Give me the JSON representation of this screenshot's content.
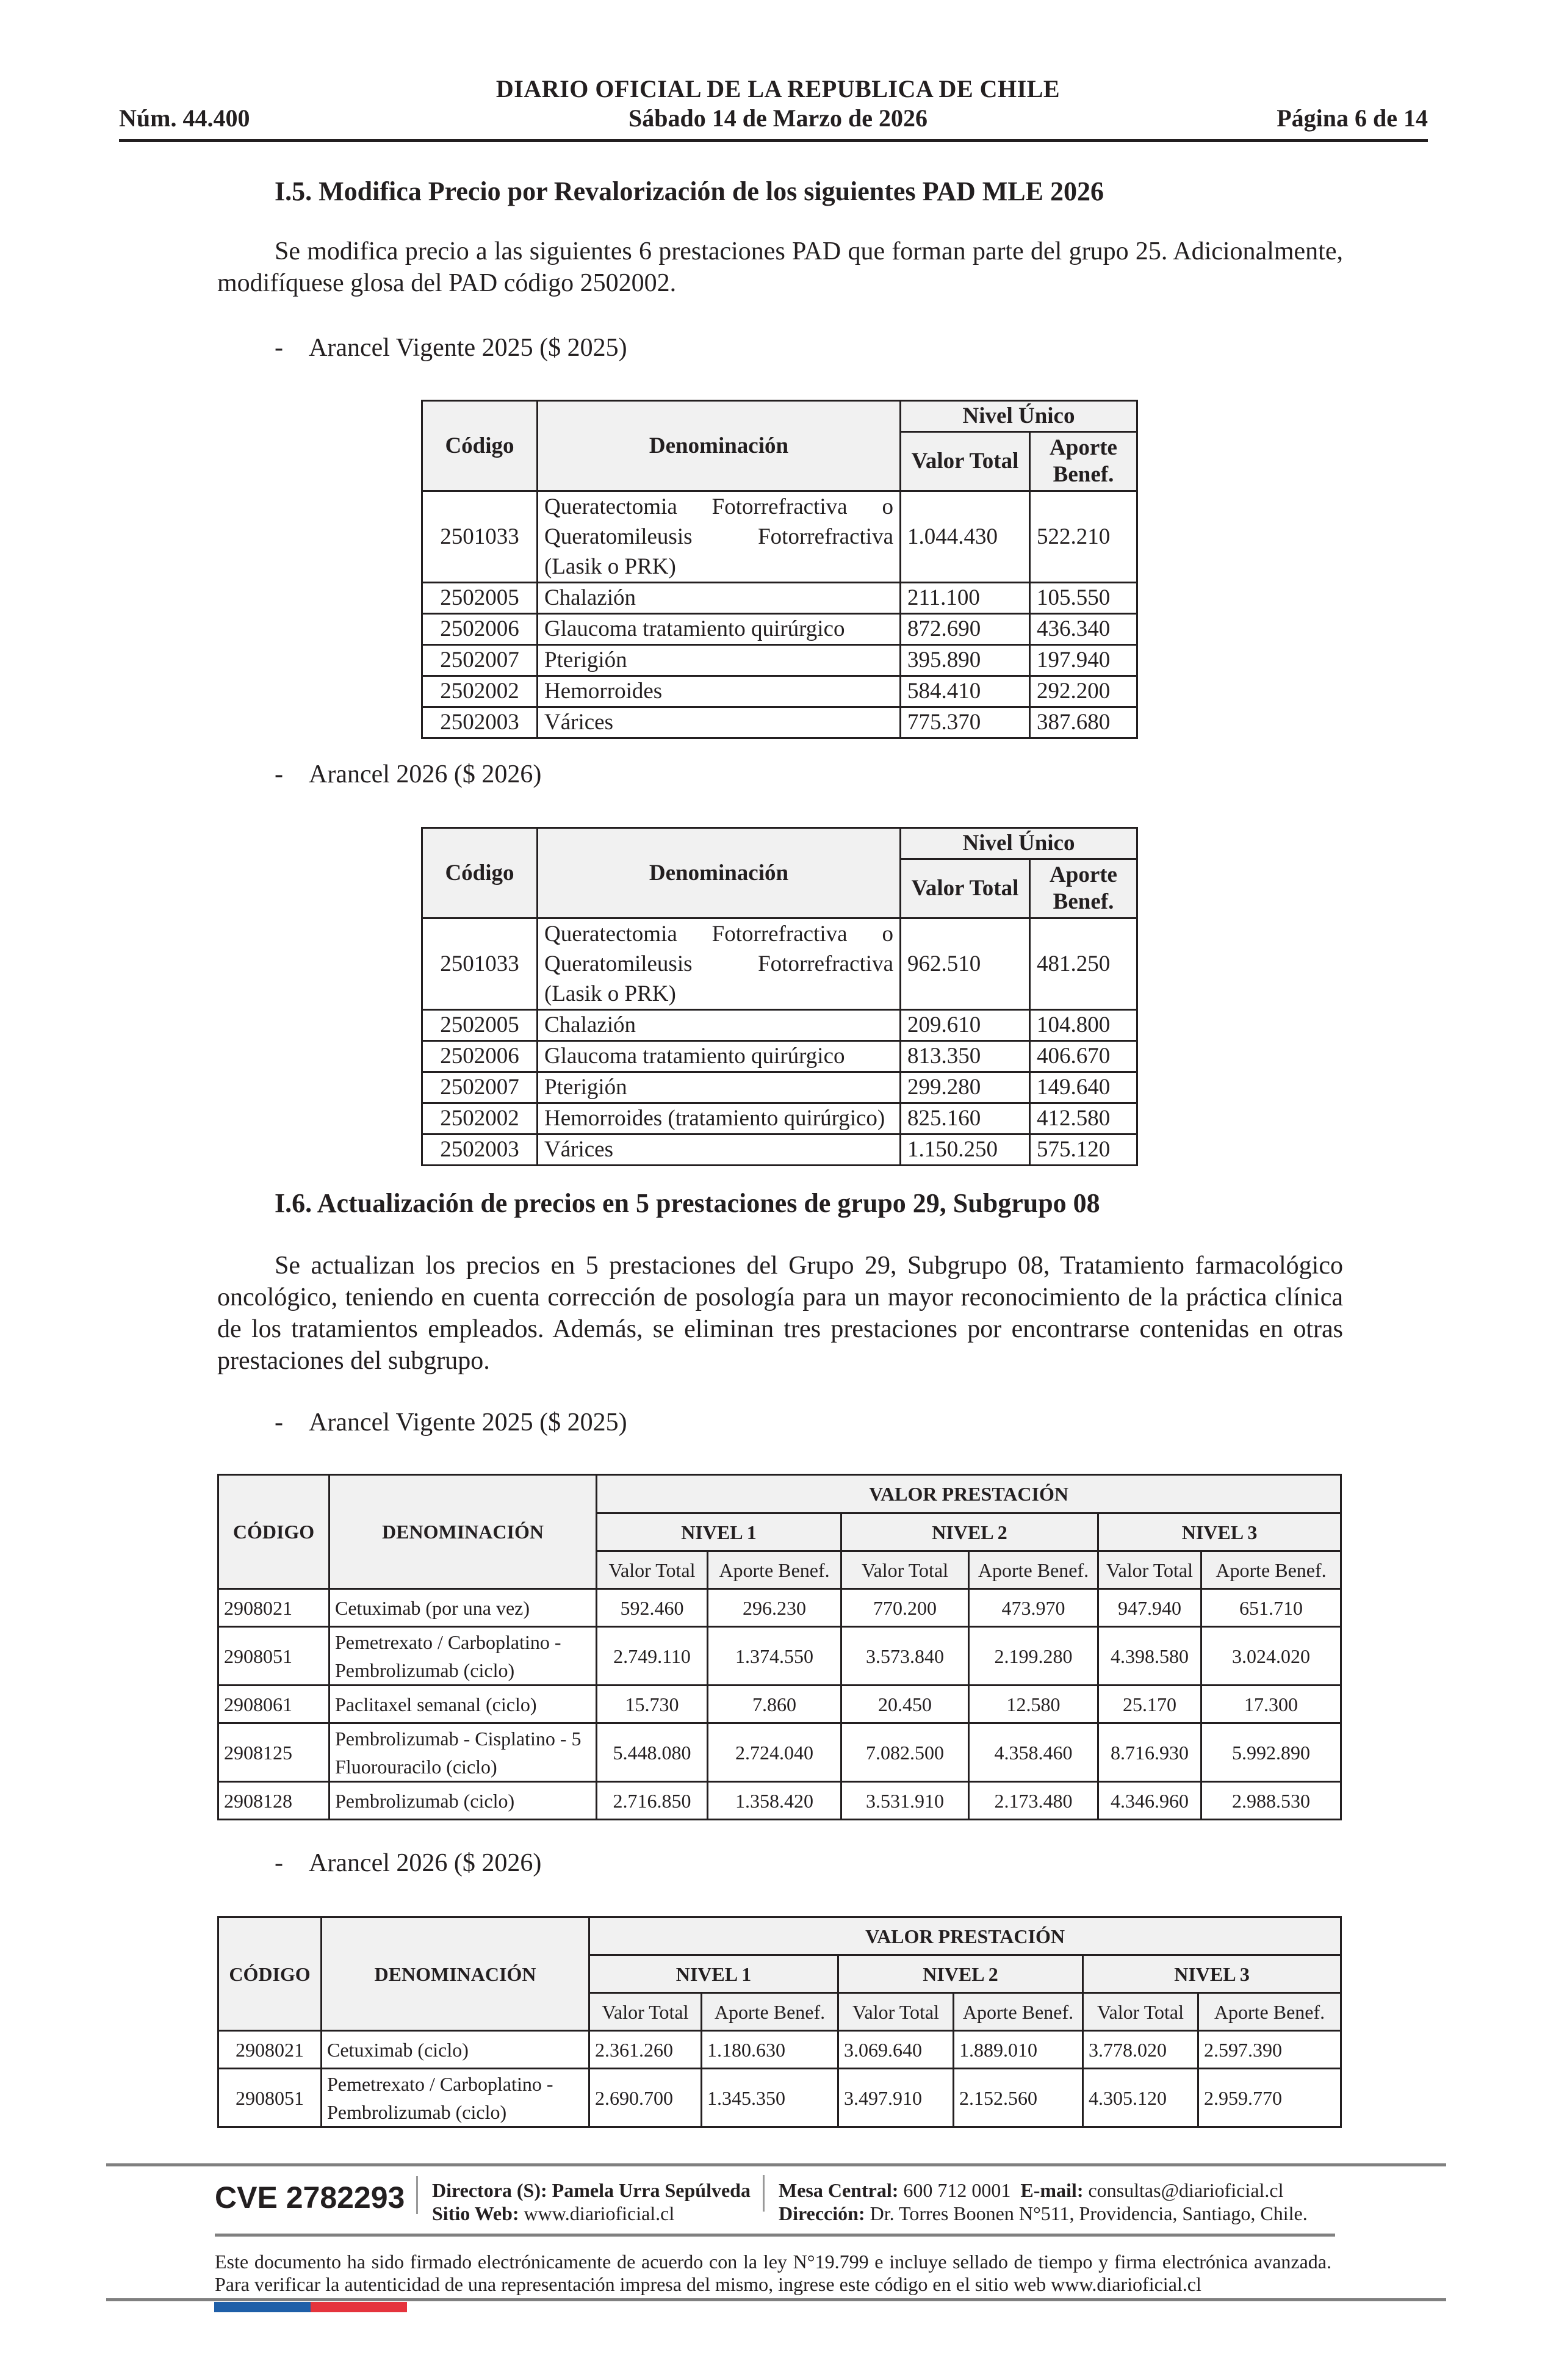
{
  "header": {
    "title": "DIARIO OFICIAL DE LA REPUBLICA DE CHILE",
    "number": "Núm. 44.400",
    "date": "Sábado 14 de Marzo de 2026",
    "page": "Página 6 de 14"
  },
  "section_i5": {
    "heading": "I.5. Modifica Precio por Revalorización de los siguientes PAD MLE 2026",
    "paragraph": "Se modifica precio a las siguientes 6 prestaciones PAD que forman parte del grupo 25. Adicionalmente, modifíquese glosa del PAD código 2502002.",
    "bullet_2025": "Arancel Vigente 2025 ($ 2025)",
    "bullet_2026": "Arancel 2026 ($ 2026)",
    "bullet_dash": "-",
    "table_headers": {
      "code": "Código",
      "name": "Denominación",
      "level": "Nivel Único",
      "total": "Valor Total",
      "aporte": "Aporte Benef."
    },
    "table_2025": [
      {
        "code": "2501033",
        "name": "Queratectomia Fotorrefractiva o Queratomileusis Fotorrefractiva (Lasik o PRK)",
        "total": "1.044.430",
        "aporte": "522.210"
      },
      {
        "code": "2502005",
        "name": "Chalazión",
        "total": "211.100",
        "aporte": "105.550"
      },
      {
        "code": "2502006",
        "name": "Glaucoma tratamiento quirúrgico",
        "total": "872.690",
        "aporte": "436.340"
      },
      {
        "code": "2502007",
        "name": "Pterigión",
        "total": "395.890",
        "aporte": "197.940"
      },
      {
        "code": "2502002",
        "name": "Hemorroides",
        "total": "584.410",
        "aporte": "292.200"
      },
      {
        "code": "2502003",
        "name": "Várices",
        "total": "775.370",
        "aporte": "387.680"
      }
    ],
    "table_2026": [
      {
        "code": "2501033",
        "name": "Queratectomia Fotorrefractiva o Queratomileusis Fotorrefractiva (Lasik o PRK)",
        "total": "962.510",
        "aporte": "481.250"
      },
      {
        "code": "2502005",
        "name": "Chalazión",
        "total": "209.610",
        "aporte": "104.800"
      },
      {
        "code": "2502006",
        "name": "Glaucoma tratamiento quirúrgico",
        "total": "813.350",
        "aporte": "406.670"
      },
      {
        "code": "2502007",
        "name": "Pterigión",
        "total": "299.280",
        "aporte": "149.640"
      },
      {
        "code": "2502002",
        "name": "Hemorroides (tratamiento quirúrgico)",
        "total": "825.160",
        "aporte": "412.580"
      },
      {
        "code": "2502003",
        "name": "Várices",
        "total": "1.150.250",
        "aporte": "575.120"
      }
    ]
  },
  "section_i6": {
    "heading": "I.6. Actualización de precios en 5 prestaciones de grupo 29, Subgrupo 08",
    "paragraph": "Se actualizan los precios en 5 prestaciones del Grupo 29, Subgrupo 08, Tratamiento farmacológico oncológico, teniendo en cuenta corrección de posología para un mayor reconocimiento de la práctica clínica de los tratamientos empleados. Además, se eliminan tres prestaciones por encontrarse contenidas en otras prestaciones del subgrupo.",
    "bullet_2025": "Arancel Vigente 2025 ($ 2025)",
    "bullet_2026": "Arancel 2026 ($ 2026)",
    "bullet_dash": "-",
    "table_headers": {
      "code": "CÓDIGO",
      "name": "DENOMINACIÓN",
      "group": "VALOR PRESTACIÓN",
      "levels": [
        "NIVEL 1",
        "NIVEL 2",
        "NIVEL 3"
      ],
      "total": "Valor Total",
      "aporte": "Aporte Benef."
    },
    "table_2025": [
      {
        "code": "2908021",
        "name": "Cetuximab (por una vez)",
        "values": [
          "592.460",
          "296.230",
          "770.200",
          "473.970",
          "947.940",
          "651.710"
        ]
      },
      {
        "code": "2908051",
        "name": "Pemetrexato / Carboplatino - Pembrolizumab (ciclo)",
        "values": [
          "2.749.110",
          "1.374.550",
          "3.573.840",
          "2.199.280",
          "4.398.580",
          "3.024.020"
        ]
      },
      {
        "code": "2908061",
        "name": "Paclitaxel semanal (ciclo)",
        "values": [
          "15.730",
          "7.860",
          "20.450",
          "12.580",
          "25.170",
          "17.300"
        ]
      },
      {
        "code": "2908125",
        "name": "Pembrolizumab - Cisplatino - 5 Fluorouracilo (ciclo)",
        "values": [
          "5.448.080",
          "2.724.040",
          "7.082.500",
          "4.358.460",
          "8.716.930",
          "5.992.890"
        ]
      },
      {
        "code": "2908128",
        "name": "Pembrolizumab (ciclo)",
        "values": [
          "2.716.850",
          "1.358.420",
          "3.531.910",
          "2.173.480",
          "4.346.960",
          "2.988.530"
        ]
      }
    ],
    "table_2026": [
      {
        "code": "2908021",
        "name": "Cetuximab (ciclo)",
        "values": [
          "2.361.260",
          "1.180.630",
          "3.069.640",
          "1.889.010",
          "3.778.020",
          "2.597.390"
        ]
      },
      {
        "code": "2908051",
        "name": "Pemetrexato / Carboplatino - Pembrolizumab (ciclo)",
        "values": [
          "2.690.700",
          "1.345.350",
          "3.497.910",
          "2.152.560",
          "4.305.120",
          "2.959.770"
        ]
      }
    ]
  },
  "footer": {
    "cve": "CVE 2782293",
    "director_label": "Directora (S):",
    "director_name": "Pamela Urra Sepúlveda",
    "web_label": "Sitio Web:",
    "web": "www.diarioficial.cl",
    "phone_label": "Mesa Central:",
    "phone": "600 712 0001",
    "email_label": "E-mail:",
    "email": "consultas@diarioficial.cl",
    "address_label": "Dirección:",
    "address": "Dr. Torres Boonen N°511, Providencia, Santiago, Chile.",
    "signature_notice": "Este documento ha sido firmado electrónicamente de acuerdo con la ley N°19.799 e incluye sellado de tiempo y firma electrónica avanzada. Para verificar la autenticidad de una representación impresa del mismo, ingrese este código en el sitio web www.diarioficial.cl",
    "flag_colors": {
      "blue": "#1f5fa8",
      "red": "#e5343d"
    }
  }
}
